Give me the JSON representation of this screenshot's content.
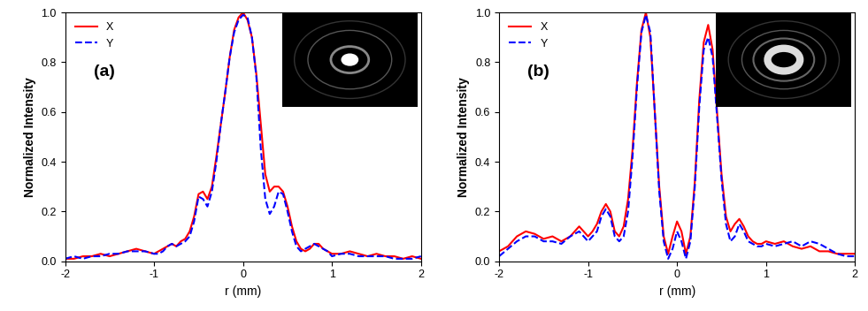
{
  "chart_data": [
    {
      "type": "line",
      "annotation": "(a)",
      "x_label": "r (mm)",
      "y_label": "Normalized Intensity",
      "x": [
        -2.0,
        -1.9,
        -1.8,
        -1.7,
        -1.6,
        -1.5,
        -1.4,
        -1.3,
        -1.2,
        -1.1,
        -1.0,
        -0.95,
        -0.9,
        -0.85,
        -0.8,
        -0.75,
        -0.7,
        -0.65,
        -0.6,
        -0.55,
        -0.5,
        -0.45,
        -0.4,
        -0.35,
        -0.3,
        -0.25,
        -0.2,
        -0.15,
        -0.1,
        -0.05,
        0,
        0.05,
        0.1,
        0.15,
        0.2,
        0.25,
        0.3,
        0.35,
        0.4,
        0.45,
        0.5,
        0.55,
        0.6,
        0.65,
        0.7,
        0.75,
        0.8,
        0.85,
        0.9,
        0.95,
        1.0,
        1.1,
        1.2,
        1.3,
        1.4,
        1.5,
        1.6,
        1.7,
        1.8,
        1.9,
        2.0
      ],
      "series": [
        {
          "name": "X",
          "color": "#ff0000",
          "line_style": "solid",
          "values": [
            0.01,
            0.01,
            0.02,
            0.02,
            0.03,
            0.02,
            0.03,
            0.04,
            0.05,
            0.04,
            0.03,
            0.04,
            0.05,
            0.06,
            0.07,
            0.06,
            0.08,
            0.09,
            0.12,
            0.18,
            0.27,
            0.28,
            0.25,
            0.3,
            0.42,
            0.55,
            0.68,
            0.82,
            0.93,
            0.98,
            1.0,
            0.97,
            0.9,
            0.75,
            0.55,
            0.35,
            0.28,
            0.3,
            0.3,
            0.28,
            0.22,
            0.14,
            0.08,
            0.05,
            0.04,
            0.05,
            0.07,
            0.07,
            0.05,
            0.04,
            0.03,
            0.03,
            0.04,
            0.03,
            0.02,
            0.03,
            0.02,
            0.02,
            0.01,
            0.02,
            0.01
          ]
        },
        {
          "name": "Y",
          "color": "#0000ff",
          "line_style": "dashed",
          "values": [
            0.01,
            0.02,
            0.01,
            0.02,
            0.02,
            0.03,
            0.03,
            0.04,
            0.04,
            0.04,
            0.03,
            0.03,
            0.04,
            0.06,
            0.07,
            0.06,
            0.07,
            0.08,
            0.1,
            0.16,
            0.26,
            0.25,
            0.22,
            0.28,
            0.4,
            0.55,
            0.68,
            0.82,
            0.92,
            0.97,
            0.99,
            0.98,
            0.9,
            0.74,
            0.45,
            0.25,
            0.19,
            0.22,
            0.28,
            0.27,
            0.2,
            0.12,
            0.06,
            0.04,
            0.05,
            0.06,
            0.07,
            0.06,
            0.05,
            0.04,
            0.02,
            0.03,
            0.03,
            0.02,
            0.02,
            0.02,
            0.02,
            0.01,
            0.01,
            0.01,
            0.02
          ]
        }
      ],
      "xlim": [
        -2,
        2
      ],
      "xticks": [
        -2,
        -1,
        0,
        1,
        2
      ],
      "ylim": [
        0,
        1.0
      ],
      "yticks": [
        {
          "value": 0,
          "label": "0.0"
        },
        {
          "value": 0.2,
          "label": "0.2"
        },
        {
          "value": 0.4,
          "label": "0.4"
        },
        {
          "value": 0.6,
          "label": "0.6"
        },
        {
          "value": 0.8,
          "label": "0.8"
        },
        {
          "value": 1.0,
          "label": "1.0"
        }
      ],
      "legend": "upper left",
      "grid": false
    },
    {
      "type": "line",
      "annotation": "(b)",
      "x_label": "r (mm)",
      "y_label": "Normalized Intensity",
      "x": [
        -2.0,
        -1.9,
        -1.8,
        -1.7,
        -1.6,
        -1.5,
        -1.4,
        -1.3,
        -1.2,
        -1.1,
        -1.0,
        -0.95,
        -0.9,
        -0.85,
        -0.8,
        -0.75,
        -0.7,
        -0.65,
        -0.6,
        -0.55,
        -0.5,
        -0.45,
        -0.4,
        -0.35,
        -0.3,
        -0.25,
        -0.2,
        -0.15,
        -0.1,
        -0.05,
        0,
        0.05,
        0.1,
        0.15,
        0.2,
        0.25,
        0.3,
        0.35,
        0.4,
        0.45,
        0.5,
        0.55,
        0.6,
        0.65,
        0.7,
        0.75,
        0.8,
        0.85,
        0.9,
        0.95,
        1.0,
        1.1,
        1.2,
        1.3,
        1.4,
        1.5,
        1.6,
        1.7,
        1.8,
        1.9,
        2.0
      ],
      "series": [
        {
          "name": "X",
          "color": "#ff0000",
          "line_style": "solid",
          "values": [
            0.04,
            0.06,
            0.1,
            0.12,
            0.11,
            0.09,
            0.1,
            0.08,
            0.1,
            0.14,
            0.1,
            0.12,
            0.15,
            0.2,
            0.23,
            0.2,
            0.12,
            0.1,
            0.14,
            0.25,
            0.45,
            0.72,
            0.93,
            1.0,
            0.9,
            0.6,
            0.3,
            0.1,
            0.03,
            0.1,
            0.16,
            0.12,
            0.03,
            0.1,
            0.32,
            0.65,
            0.88,
            0.95,
            0.85,
            0.6,
            0.35,
            0.18,
            0.12,
            0.15,
            0.17,
            0.14,
            0.1,
            0.08,
            0.07,
            0.07,
            0.08,
            0.07,
            0.08,
            0.06,
            0.05,
            0.06,
            0.04,
            0.04,
            0.03,
            0.03,
            0.03
          ]
        },
        {
          "name": "Y",
          "color": "#0000ff",
          "line_style": "dashed",
          "values": [
            0.02,
            0.05,
            0.08,
            0.1,
            0.1,
            0.08,
            0.08,
            0.07,
            0.1,
            0.12,
            0.08,
            0.1,
            0.12,
            0.18,
            0.21,
            0.18,
            0.1,
            0.08,
            0.1,
            0.2,
            0.42,
            0.7,
            0.92,
            0.99,
            0.92,
            0.6,
            0.28,
            0.08,
            0.01,
            0.05,
            0.12,
            0.08,
            0.01,
            0.08,
            0.3,
            0.62,
            0.85,
            0.9,
            0.82,
            0.58,
            0.33,
            0.15,
            0.08,
            0.1,
            0.15,
            0.12,
            0.08,
            0.07,
            0.06,
            0.06,
            0.07,
            0.06,
            0.07,
            0.08,
            0.06,
            0.08,
            0.07,
            0.05,
            0.03,
            0.02,
            0.02
          ]
        }
      ],
      "xlim": [
        -2,
        2
      ],
      "xticks": [
        -2,
        -1,
        0,
        1,
        2
      ],
      "ylim": [
        0,
        1.0
      ],
      "yticks": [
        {
          "value": 0,
          "label": "0.0"
        },
        {
          "value": 0.2,
          "label": "0.2"
        },
        {
          "value": 0.4,
          "label": "0.4"
        },
        {
          "value": 0.6,
          "label": "0.6"
        },
        {
          "value": 0.8,
          "label": "0.8"
        },
        {
          "value": 1.0,
          "label": "1.0"
        }
      ],
      "legend": "upper left",
      "grid": false
    }
  ]
}
